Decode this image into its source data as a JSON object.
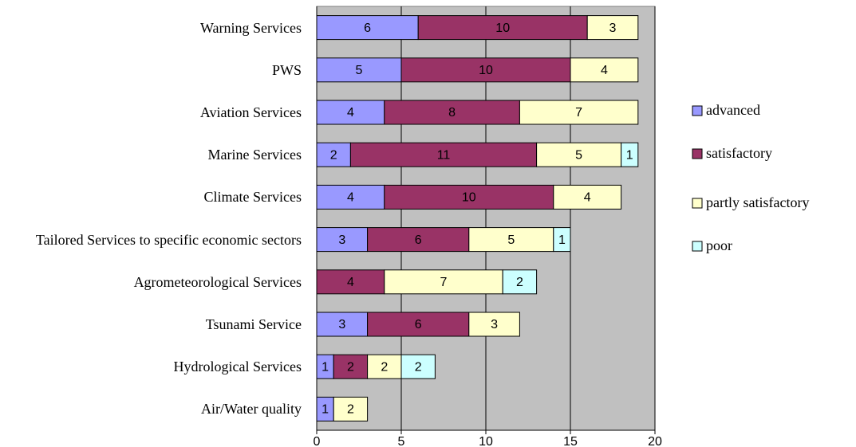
{
  "chart_data": {
    "type": "stacked-bar-horizontal",
    "categories": [
      "Warning Services",
      "PWS",
      "Aviation Services",
      "Marine Services",
      "Climate Services",
      "Tailored Services to specific economic sectors",
      "Agrometeorological Services",
      "Tsunami Service",
      "Hydrological Services",
      "Air/Water quality"
    ],
    "series": [
      {
        "name": "advanced",
        "color": "#9999ff",
        "values": [
          6,
          5,
          4,
          2,
          4,
          3,
          null,
          3,
          1,
          1
        ]
      },
      {
        "name": "satisfactory",
        "color": "#993366",
        "values": [
          10,
          10,
          8,
          11,
          10,
          6,
          4,
          6,
          2,
          null
        ]
      },
      {
        "name": "partly satisfactory",
        "color": "#ffffcc",
        "values": [
          3,
          4,
          7,
          5,
          4,
          5,
          7,
          3,
          2,
          2
        ]
      },
      {
        "name": "poor",
        "color": "#ccffff",
        "values": [
          null,
          null,
          null,
          1,
          null,
          1,
          2,
          null,
          2,
          null
        ]
      }
    ],
    "xlim": [
      0,
      20
    ],
    "xticks": [
      0,
      5,
      10,
      15,
      20
    ],
    "grid": true,
    "legend": "right"
  }
}
